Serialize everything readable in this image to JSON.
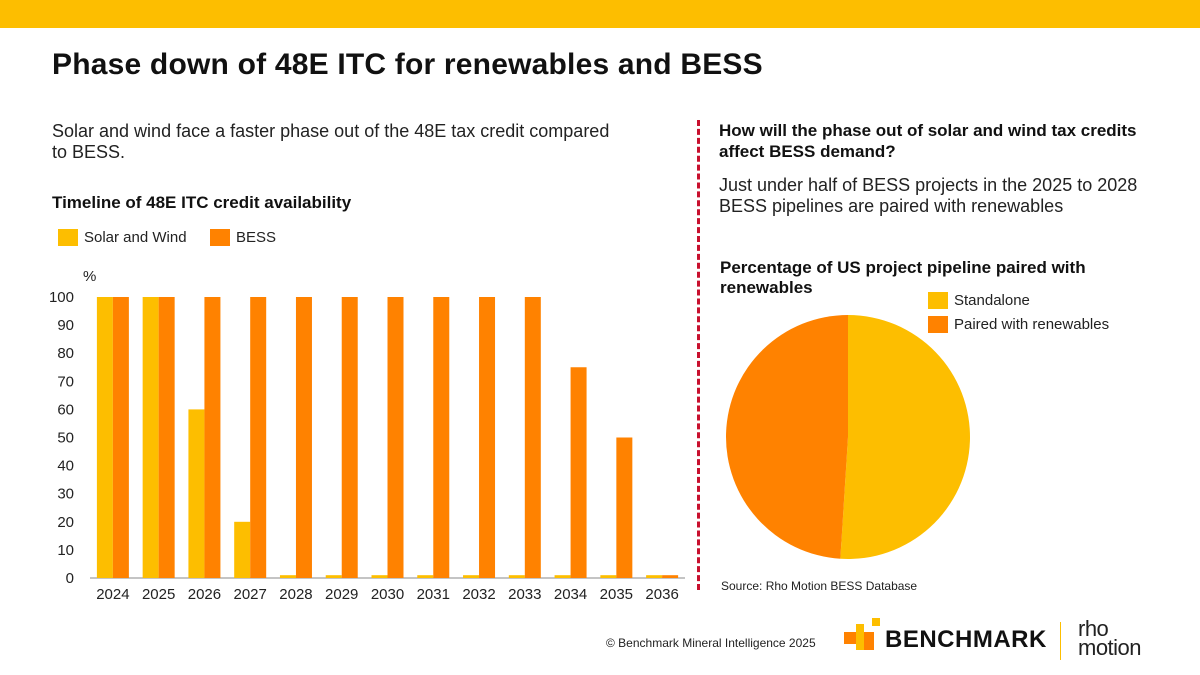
{
  "header": {
    "title": "Phase down of 48E ITC for renewables and BESS"
  },
  "left": {
    "subtitle": "Solar and wind face a faster phase out of the 48E tax credit compared to BESS.",
    "chart_title": "Timeline of 48E ITC credit availability"
  },
  "right": {
    "question": "How will the phase out of solar and wind tax credits affect BESS demand?",
    "answer": "Just under half of BESS projects in the 2025 to 2028 BESS pipelines are paired with renewables",
    "pie_title": "Percentage of US project pipeline paired with renewables",
    "source": "Source: Rho Motion BESS Database"
  },
  "footer": {
    "copyright": "© Benchmark Mineral Intelligence 2025",
    "logo_text": "BENCHMARK",
    "rho_line1": "rho",
    "rho_line2": "motion"
  },
  "colors": {
    "solar_wind": "#FDBE00",
    "bess": "#FF8200",
    "accent_bar": "#FDBE00",
    "divider": "#C8102E"
  },
  "chart_data": [
    {
      "type": "bar",
      "title": "Timeline of 48E ITC credit availability",
      "ylabel": "%",
      "xlabel": "",
      "ylim": [
        0,
        100
      ],
      "yticks": [
        0,
        10,
        20,
        30,
        40,
        50,
        60,
        70,
        80,
        90,
        100
      ],
      "categories": [
        "2024",
        "2025",
        "2026",
        "2027",
        "2028",
        "2029",
        "2030",
        "2031",
        "2032",
        "2033",
        "2034",
        "2035",
        "2036"
      ],
      "series": [
        {
          "name": "Solar and Wind",
          "color": "#FDBE00",
          "values": [
            100,
            100,
            60,
            20,
            1,
            1,
            1,
            1,
            1,
            1,
            1,
            1,
            1
          ]
        },
        {
          "name": "BESS",
          "color": "#FF8200",
          "values": [
            100,
            100,
            100,
            100,
            100,
            100,
            100,
            100,
            100,
            100,
            75,
            50,
            1
          ]
        }
      ],
      "legend_position": "top-left"
    },
    {
      "type": "pie",
      "title": "Percentage of US project pipeline paired with renewables",
      "slices": [
        {
          "name": "Standalone",
          "value": 51,
          "color": "#FDBE00"
        },
        {
          "name": "Paired with renewables",
          "value": 49,
          "color": "#FF8200"
        }
      ],
      "legend_position": "top-right"
    }
  ]
}
